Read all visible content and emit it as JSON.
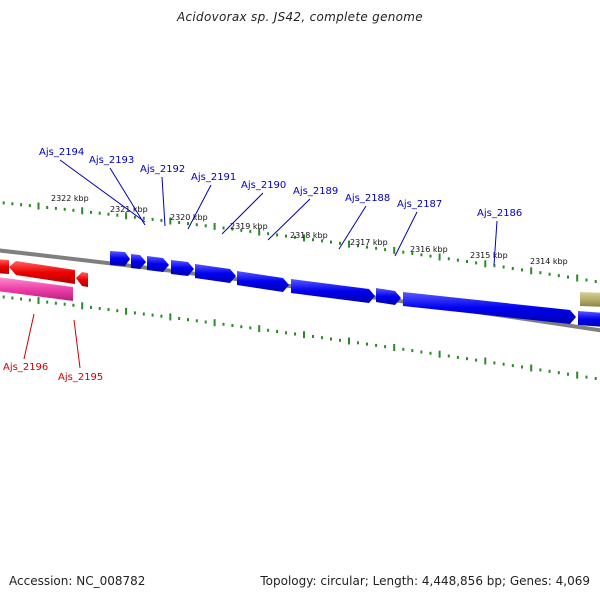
{
  "header": {
    "title": "Acidovorax sp. JS42, complete genome"
  },
  "footer": {
    "accession": "Accession: NC_008782",
    "summary": "Topology: circular; Length: 4,448,856 bp; Genes: 4,069"
  },
  "map": {
    "kbp_labels": [
      "2322 kbp",
      "2321 kbp",
      "2320 kbp",
      "2319 kbp",
      "2318 kbp",
      "2317 kbp",
      "2316 kbp",
      "2315 kbp",
      "2314 kbp"
    ],
    "genes": [
      {
        "name": "Ajs_2194",
        "strand": "+"
      },
      {
        "name": "Ajs_2193",
        "strand": "+"
      },
      {
        "name": "Ajs_2192",
        "strand": "+"
      },
      {
        "name": "Ajs_2191",
        "strand": "+"
      },
      {
        "name": "Ajs_2190",
        "strand": "+"
      },
      {
        "name": "Ajs_2189",
        "strand": "+"
      },
      {
        "name": "Ajs_2188",
        "strand": "+"
      },
      {
        "name": "Ajs_2187",
        "strand": "+"
      },
      {
        "name": "Ajs_2186",
        "strand": "+"
      },
      {
        "name": "Ajs_2196",
        "strand": "-"
      },
      {
        "name": "Ajs_2195",
        "strand": "-"
      }
    ],
    "colors": {
      "forward_gene": "#0000ee",
      "reverse_gene": "#ee0000",
      "reverse_gene_alt": "#ee3fa8",
      "other_feature": "#b7ae6a",
      "backbone": "#808080",
      "ticks": "#2a8a2a",
      "forward_label": "#0000bb",
      "reverse_label": "#cc0000"
    }
  }
}
